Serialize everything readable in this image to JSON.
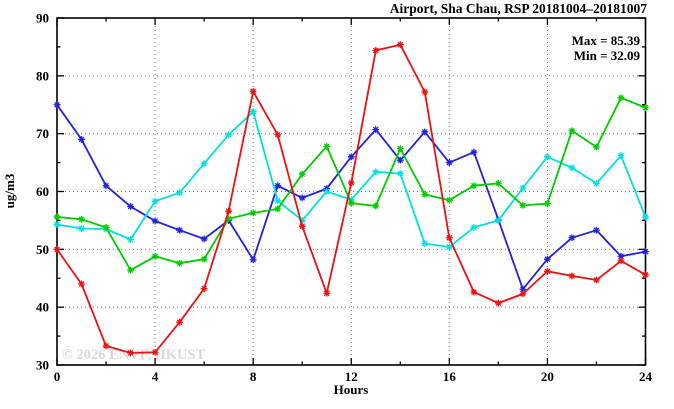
{
  "title": "Airport, Sha Chau, RSP 20181004–20181007",
  "annotations": {
    "max_label": "Max = 85.39",
    "min_label": "Min = 32.09"
  },
  "watermark": "© 2026 ENVF, HKUST",
  "chart_data": {
    "type": "line",
    "title": "Airport, Sha Chau, RSP 20181004–20181007",
    "xlabel": "Hours",
    "ylabel": "ug/m3",
    "xlim": [
      0,
      24
    ],
    "ylim": [
      30,
      90
    ],
    "x_major_ticks": [
      0,
      4,
      8,
      12,
      16,
      20,
      24
    ],
    "x_minor_ticks": [
      2,
      6,
      10,
      14,
      18,
      22
    ],
    "y_major_ticks": [
      30,
      40,
      50,
      60,
      70,
      80,
      90
    ],
    "y_minor_ticks": [
      35,
      45,
      55,
      65,
      75,
      85
    ],
    "grid": true,
    "marker": "asterisk",
    "max_value": 85.39,
    "min_value": 32.09,
    "x": [
      0,
      1,
      2,
      3,
      4,
      5,
      6,
      7,
      8,
      9,
      10,
      11,
      12,
      13,
      14,
      15,
      16,
      17,
      18,
      19,
      20,
      21,
      22,
      23,
      24
    ],
    "series": [
      {
        "name": "blue-series",
        "color": "#2222dd",
        "values": [
          75.0,
          69.0,
          61.0,
          57.4,
          54.9,
          53.3,
          51.8,
          55.0,
          48.2,
          61.0,
          58.9,
          60.5,
          66.0,
          70.7,
          65.4,
          70.3,
          65.0,
          66.8,
          55.1,
          43.1,
          48.3,
          52.0,
          53.3,
          48.8,
          49.6
        ]
      },
      {
        "name": "cyan-series",
        "color": "#00e0e0",
        "values": [
          54.3,
          53.6,
          53.5,
          51.7,
          58.3,
          59.8,
          64.8,
          69.8,
          73.8,
          58.4,
          55.0,
          60.0,
          58.6,
          63.4,
          63.1,
          51.0,
          50.4,
          53.8,
          55.0,
          60.6,
          66.0,
          64.1,
          61.4,
          66.2,
          55.6
        ]
      },
      {
        "name": "green-series",
        "color": "#00cc00",
        "values": [
          55.6,
          55.2,
          53.8,
          46.4,
          48.8,
          47.6,
          48.3,
          55.3,
          56.3,
          57.0,
          63.0,
          67.8,
          58.0,
          57.5,
          67.4,
          59.5,
          58.5,
          61.0,
          61.4,
          57.6,
          57.9,
          70.5,
          67.7,
          76.2,
          74.5
        ]
      },
      {
        "name": "red-series",
        "color": "#ee1111",
        "values": [
          50.0,
          44.0,
          33.3,
          32.09,
          32.2,
          37.4,
          43.2,
          56.6,
          77.3,
          69.8,
          54.0,
          42.4,
          61.5,
          84.4,
          85.39,
          77.2,
          52.0,
          42.6,
          40.7,
          42.3,
          46.2,
          45.4,
          44.7,
          48.0,
          45.6
        ]
      }
    ]
  }
}
